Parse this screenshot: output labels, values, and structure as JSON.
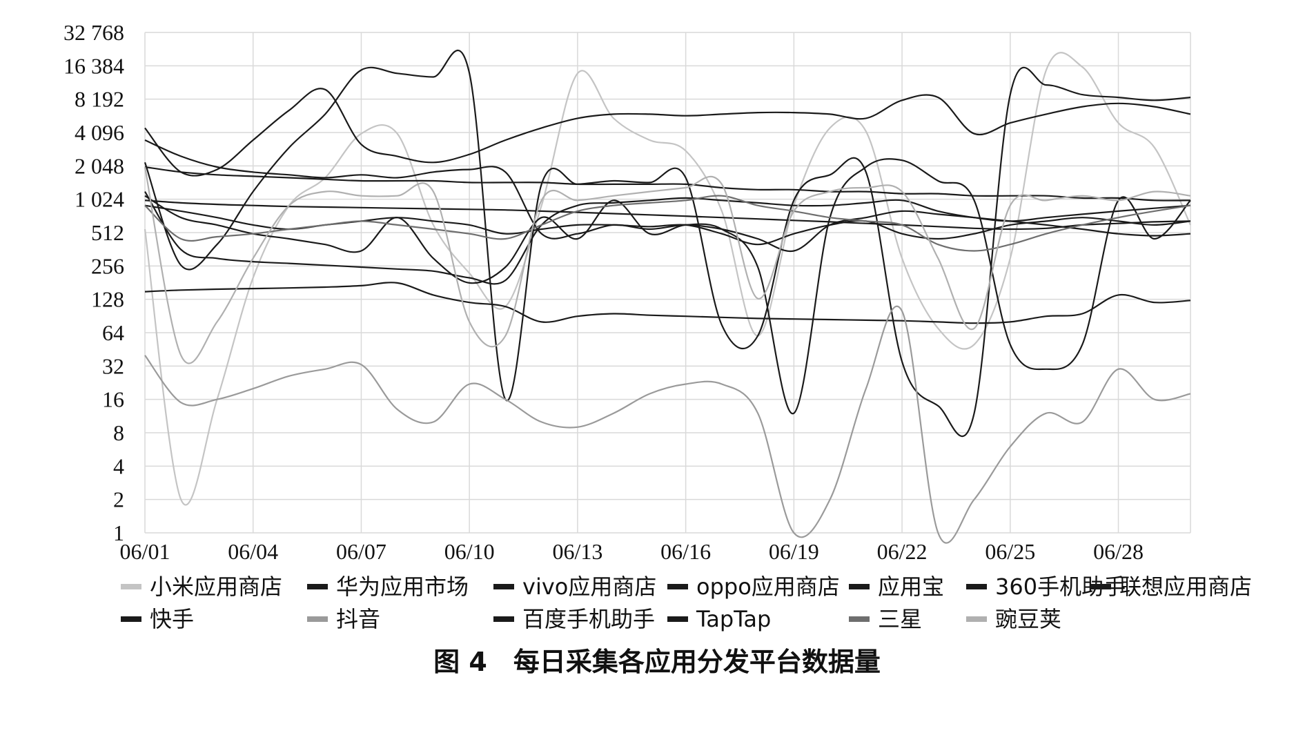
{
  "chart_data": {
    "type": "line",
    "y_scale": "log2",
    "ylim": [
      1,
      32768
    ],
    "y_ticks": [
      "1",
      "2",
      "4",
      "8",
      "16",
      "32",
      "64",
      "128",
      "256",
      "512",
      "1 024",
      "2 048",
      "4 096",
      "8 192",
      "16 384",
      "32 768"
    ],
    "x_ticks": [
      "06/01",
      "06/04",
      "06/07",
      "06/10",
      "06/13",
      "06/16",
      "06/19",
      "06/22",
      "06/25",
      "06/28"
    ],
    "x": [
      "06/01",
      "06/02",
      "06/03",
      "06/04",
      "06/05",
      "06/06",
      "06/07",
      "06/08",
      "06/09",
      "06/10",
      "06/11",
      "06/12",
      "06/13",
      "06/14",
      "06/15",
      "06/16",
      "06/17",
      "06/18",
      "06/19",
      "06/20",
      "06/21",
      "06/22",
      "06/23",
      "06/24",
      "06/25",
      "06/26",
      "06/27",
      "06/28",
      "06/29",
      "06/30"
    ],
    "grid": true,
    "legend_position": "bottom",
    "caption": "图 4　每日采集各应用分发平台数据量",
    "series": [
      {
        "name": "小米应用商店",
        "color": "#c4c4c4",
        "values": [
          550,
          2,
          16,
          200,
          900,
          1600,
          4000,
          4000,
          600,
          220,
          110,
          900,
          14000,
          5500,
          3500,
          2800,
          800,
          60,
          900,
          4500,
          4200,
          300,
          70,
          50,
          300,
          15000,
          16000,
          5000,
          3000,
          600
        ]
      },
      {
        "name": "华为应用市场",
        "color": "#1a1a1a",
        "values": [
          2200,
          260,
          400,
          1200,
          3000,
          6000,
          15000,
          14000,
          13000,
          14000,
          16,
          1400,
          1400,
          1500,
          1450,
          1600,
          75,
          60,
          1000,
          1700,
          1800,
          35,
          14,
          12,
          9000,
          11000,
          9000,
          8500,
          8000,
          8500
        ]
      },
      {
        "name": "vivo应用商店",
        "color": "#1a1a1a",
        "values": [
          900,
          800,
          700,
          600,
          550,
          600,
          650,
          700,
          650,
          600,
          500,
          550,
          600,
          600,
          580,
          600,
          500,
          400,
          500,
          600,
          650,
          500,
          450,
          500,
          600,
          650,
          700,
          650,
          600,
          650
        ]
      },
      {
        "name": "oppo应用商店",
        "color": "#1a1a1a",
        "values": [
          2000,
          1800,
          1700,
          1650,
          1600,
          1550,
          1500,
          1500,
          1500,
          1450,
          1450,
          1450,
          1400,
          1400,
          1400,
          1400,
          1300,
          1250,
          1250,
          1200,
          1200,
          1150,
          1150,
          1100,
          1100,
          1100,
          1050,
          1050,
          1000,
          1000
        ]
      },
      {
        "name": "应用宝",
        "color": "#1a1a1a",
        "values": [
          1000,
          950,
          920,
          900,
          880,
          870,
          860,
          850,
          840,
          830,
          820,
          800,
          780,
          760,
          740,
          720,
          700,
          680,
          660,
          640,
          620,
          600,
          580,
          560,
          550,
          560,
          600,
          620,
          640,
          650
        ]
      },
      {
        "name": "360手机助手",
        "color": "#1a1a1a",
        "values": [
          1200,
          360,
          300,
          280,
          270,
          260,
          250,
          240,
          230,
          200,
          190,
          600,
          900,
          950,
          1000,
          1050,
          1000,
          950,
          900,
          900,
          950,
          1000,
          800,
          700,
          650,
          700,
          750,
          800,
          850,
          900
        ]
      },
      {
        "name": "联想应用商店",
        "color": "#1a1a1a",
        "values": [
          150,
          155,
          158,
          160,
          162,
          165,
          170,
          180,
          140,
          120,
          110,
          80,
          90,
          95,
          92,
          90,
          88,
          86,
          85,
          84,
          83,
          82,
          80,
          78,
          80,
          90,
          95,
          140,
          120,
          125
        ]
      },
      {
        "name": "快手",
        "color": "#1a1a1a",
        "values": [
          4500,
          1800,
          1900,
          3500,
          6500,
          10000,
          3200,
          2500,
          2200,
          2600,
          3500,
          4500,
          5500,
          6000,
          6000,
          5800,
          6000,
          6200,
          6200,
          6000,
          5500,
          8000,
          8500,
          4000,
          5000,
          6000,
          7000,
          7500,
          7000,
          6000
        ]
      },
      {
        "name": "抖音",
        "color": "#9a9a9a",
        "values": [
          40,
          15,
          16,
          20,
          26,
          30,
          33,
          13,
          10,
          22,
          16,
          10,
          9,
          12,
          18,
          22,
          22,
          12,
          1,
          2,
          20,
          100,
          1,
          2,
          6,
          12,
          10,
          30,
          16,
          18
        ]
      },
      {
        "name": "百度手机助手",
        "color": "#1a1a1a",
        "values": [
          3500,
          2500,
          2000,
          1800,
          1700,
          1600,
          1700,
          1600,
          1800,
          1900,
          1800,
          500,
          500,
          600,
          550,
          600,
          550,
          450,
          350,
          600,
          700,
          800,
          750,
          700,
          650,
          600,
          550,
          500,
          480,
          500
        ]
      },
      {
        "name": "TapTap",
        "color": "#1a1a1a",
        "values": [
          1100,
          700,
          600,
          500,
          450,
          400,
          350,
          700,
          300,
          180,
          250,
          700,
          450,
          1000,
          500,
          600,
          550,
          250,
          12,
          700,
          2000,
          2300,
          1500,
          1000,
          50,
          30,
          50,
          1000,
          450,
          1000
        ]
      },
      {
        "name": "三星",
        "color": "#6e6e6e",
        "values": [
          900,
          450,
          470,
          500,
          550,
          600,
          650,
          600,
          550,
          500,
          450,
          600,
          800,
          900,
          950,
          1000,
          1100,
          900,
          800,
          700,
          650,
          600,
          400,
          350,
          400,
          500,
          600,
          700,
          800,
          900
        ]
      },
      {
        "name": "豌豆荚",
        "color": "#b0b0b0",
        "values": [
          2000,
          40,
          80,
          300,
          900,
          1200,
          1100,
          1100,
          1200,
          80,
          60,
          1000,
          1000,
          1100,
          1200,
          1300,
          1400,
          130,
          800,
          1200,
          1300,
          1200,
          300,
          70,
          900,
          1000,
          1100,
          1000,
          1200,
          1100
        ]
      }
    ]
  }
}
